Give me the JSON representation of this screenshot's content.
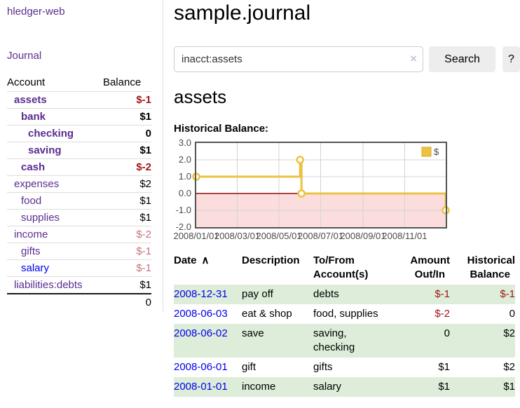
{
  "colors": {
    "accent_purple": "#5b2d90",
    "link_blue": "#0000ee",
    "negative_strong": "#9d1616",
    "negative_muted": "#c4757d",
    "row_green": "#ddedd9"
  },
  "sidebar": {
    "brand": "hledger-web",
    "nav": {
      "journal": "Journal"
    },
    "accounts": {
      "headers": {
        "account": "Account",
        "balance": "Balance"
      },
      "rows": [
        {
          "name": "assets",
          "depth": 1,
          "emphasis": "strong",
          "link": "visited",
          "balance": "$-1",
          "balance_tone": "neg-strong"
        },
        {
          "name": "bank",
          "depth": 2,
          "emphasis": "strong",
          "link": "visited",
          "balance": "$1",
          "balance_tone": "normal"
        },
        {
          "name": "checking",
          "depth": 3,
          "emphasis": "strong",
          "link": "visited",
          "balance": "0",
          "balance_tone": "normal"
        },
        {
          "name": "saving",
          "depth": 3,
          "emphasis": "strong",
          "link": "visited",
          "balance": "$1",
          "balance_tone": "normal"
        },
        {
          "name": "cash",
          "depth": 2,
          "emphasis": "strong",
          "link": "visited",
          "balance": "$-2",
          "balance_tone": "neg-strong"
        },
        {
          "name": "expenses",
          "depth": 1,
          "emphasis": "normal",
          "link": "visited",
          "balance": "$2",
          "balance_tone": "normal"
        },
        {
          "name": "food",
          "depth": 2,
          "emphasis": "normal",
          "link": "visited",
          "balance": "$1",
          "balance_tone": "normal"
        },
        {
          "name": "supplies",
          "depth": 2,
          "emphasis": "normal",
          "link": "visited",
          "balance": "$1",
          "balance_tone": "normal"
        },
        {
          "name": "income",
          "depth": 1,
          "emphasis": "normal",
          "link": "visited",
          "balance": "$-2",
          "balance_tone": "neg-muted"
        },
        {
          "name": "gifts",
          "depth": 2,
          "emphasis": "normal",
          "link": "visited",
          "balance": "$-1",
          "balance_tone": "neg-muted"
        },
        {
          "name": "salary",
          "depth": 2,
          "emphasis": "normal",
          "link": "unvisited",
          "balance": "$-1",
          "balance_tone": "neg-muted"
        },
        {
          "name": "liabilities:debts",
          "depth": 1,
          "emphasis": "normal",
          "link": "visited",
          "balance": "$1",
          "balance_tone": "normal"
        }
      ],
      "total": "0"
    }
  },
  "main": {
    "title": "sample.journal",
    "search": {
      "value": "inacct:assets",
      "clear": "×",
      "search_button": "Search",
      "help_button": "?"
    },
    "heading": "assets",
    "chart_title": "Historical Balance:",
    "register": {
      "headers": [
        {
          "label": "Date",
          "sort": "∧",
          "align": "left"
        },
        {
          "label": "Description",
          "align": "left"
        },
        {
          "label": "To/From Account(s)",
          "align": "left"
        },
        {
          "label": "Amount Out/In",
          "align": "right"
        },
        {
          "label": "Historical Balance",
          "align": "right"
        }
      ],
      "rows": [
        {
          "date": "2008-12-31",
          "description": "pay off",
          "accounts": "debts",
          "amount": "$-1",
          "amount_tone": "neg",
          "balance": "$-1",
          "balance_tone": "neg"
        },
        {
          "date": "2008-06-03",
          "description": "eat & shop",
          "accounts": "food, supplies",
          "amount": "$-2",
          "amount_tone": "neg",
          "balance": "0",
          "balance_tone": "normal"
        },
        {
          "date": "2008-06-02",
          "description": "save",
          "accounts": "saving, checking",
          "amount": "0",
          "amount_tone": "normal",
          "balance": "$2",
          "balance_tone": "normal"
        },
        {
          "date": "2008-06-01",
          "description": "gift",
          "accounts": "gifts",
          "amount": "$1",
          "amount_tone": "normal",
          "balance": "$2",
          "balance_tone": "normal"
        },
        {
          "date": "2008-01-01",
          "description": "income",
          "accounts": "salary",
          "amount": "$1",
          "amount_tone": "normal",
          "balance": "$1",
          "balance_tone": "normal"
        }
      ]
    }
  },
  "chart_data": {
    "type": "line",
    "step": true,
    "title": "Historical Balance:",
    "series": [
      {
        "name": "$",
        "color": "#edc240",
        "points": [
          {
            "x": "2008-01-01",
            "y": 1
          },
          {
            "x": "2008-06-01",
            "y": 2
          },
          {
            "x": "2008-06-03",
            "y": 0
          },
          {
            "x": "2008-12-31",
            "y": -1
          }
        ]
      }
    ],
    "xlim": [
      "2008-01-01",
      "2008-12-31"
    ],
    "ylim": [
      -2,
      3
    ],
    "y_ticks": [
      {
        "value": 3,
        "label": "3.0"
      },
      {
        "value": 2,
        "label": "2.0"
      },
      {
        "value": 1,
        "label": "1.0"
      },
      {
        "value": 0,
        "label": "0.0"
      },
      {
        "value": -1,
        "label": "-1.0"
      },
      {
        "value": -2,
        "label": "-2.0"
      }
    ],
    "x_ticks": [
      {
        "date": "2008-01-01",
        "label": "2008/01/01"
      },
      {
        "date": "2008-03-01",
        "label": "2008/03/01"
      },
      {
        "date": "2008-05-01",
        "label": "2008/05/01"
      },
      {
        "date": "2008-07-01",
        "label": "2008/07/01"
      },
      {
        "date": "2008-09-01",
        "label": "2008/09/01"
      },
      {
        "date": "2008-11-01",
        "label": "2008/11/01"
      }
    ],
    "legend": {
      "position": "top-right",
      "entries": [
        {
          "label": "$",
          "color": "#edc240"
        }
      ]
    },
    "grid": true,
    "style": {
      "negative_region_color": "#fcdddd",
      "zero_line_color": "#8e0c0c",
      "gridline_color": "#d4d4d4",
      "border_color": "#545454",
      "tick_label_color": "#4a4a4a",
      "legend_swatch_border": "#d2ab34"
    }
  }
}
